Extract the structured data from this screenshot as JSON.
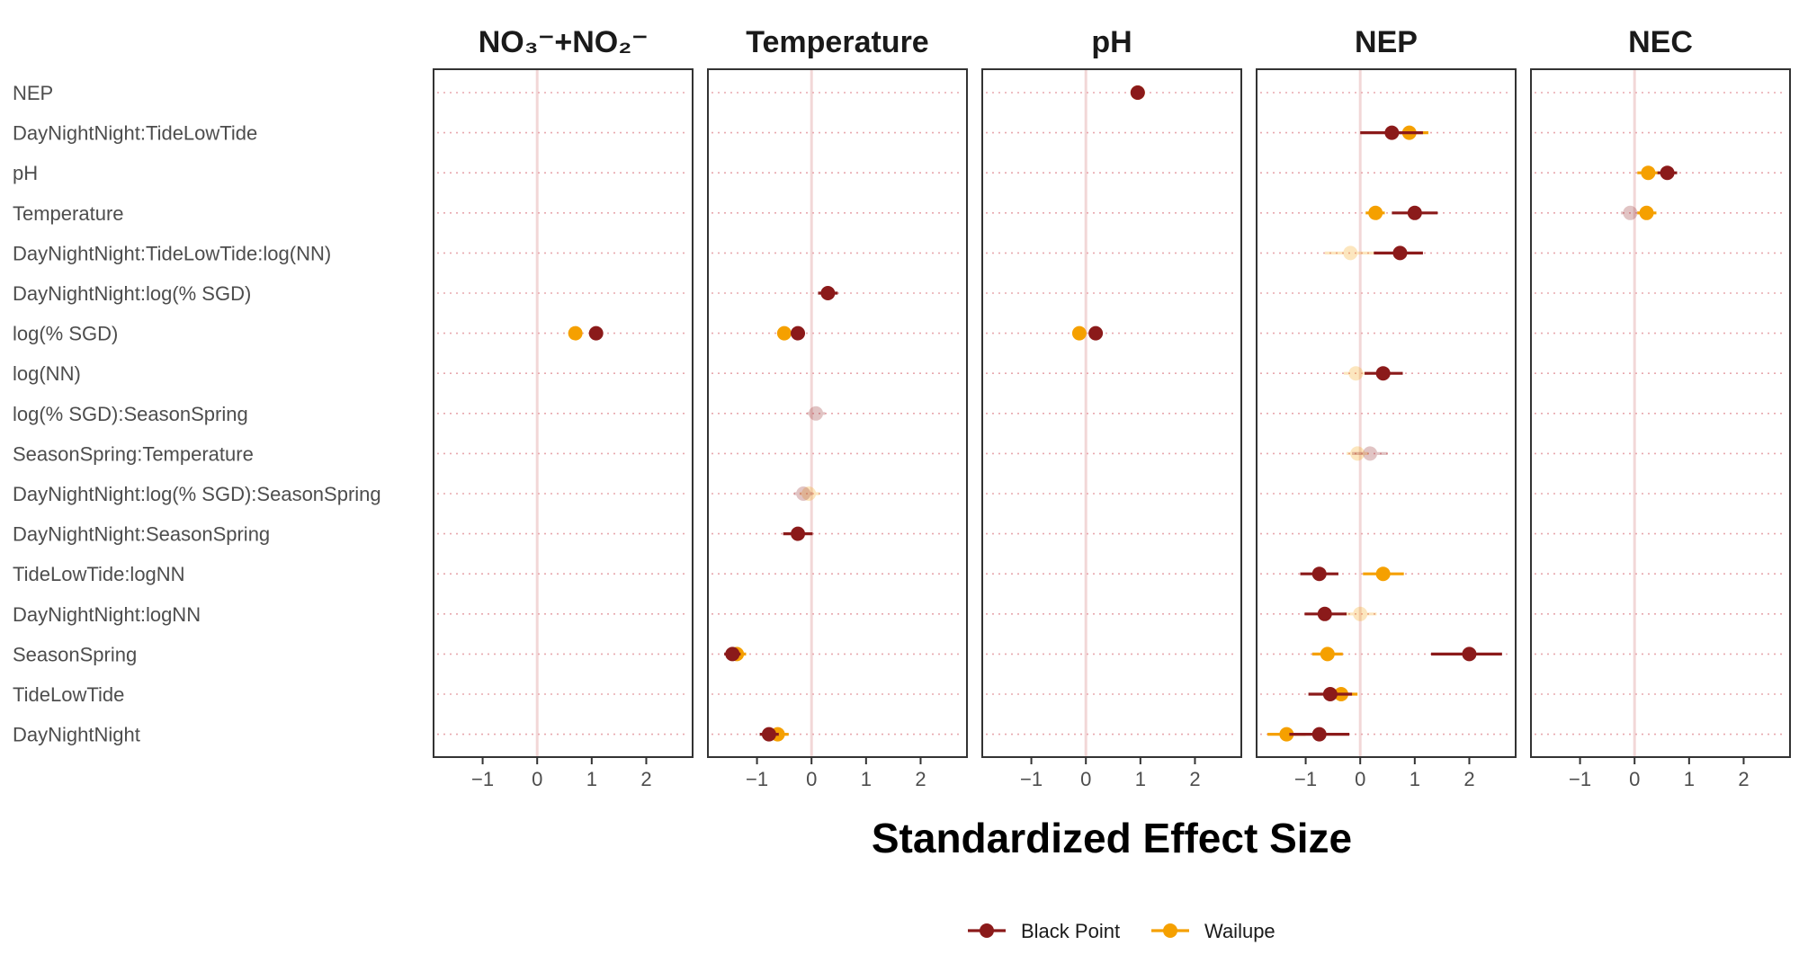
{
  "chart_data": {
    "type": "scatter",
    "subtype": "forest-plot",
    "xlabel": "Standardized Effect Size",
    "ylabel": "",
    "xlim": [
      -1.9,
      2.85
    ],
    "x_ticks": [
      -1,
      0,
      1,
      2
    ],
    "x_tick_labels": [
      "−1",
      "0",
      "1",
      "2"
    ],
    "reference_line": 0,
    "grid": "dotted horizontal lines at each term",
    "legend": {
      "position": "bottom",
      "entries": [
        {
          "name": "Black Point",
          "color": "#8B1A1A"
        },
        {
          "name": "Wailupe",
          "color": "#F5A000"
        }
      ]
    },
    "rows": [
      "NEP",
      "DayNightNight:TideLowTide",
      "pH",
      "Temperature",
      "DayNightNight:TideLowTide:log(NN)",
      "DayNightNight:log(% SGD)",
      "log(% SGD)",
      "log(NN)",
      "log(% SGD):SeasonSpring",
      "SeasonSpring:Temperature",
      "DayNightNight:log(% SGD):SeasonSpring",
      "DayNightNight:SeasonSpring",
      "TideLowTide:logNN",
      "DayNightNight:logNN",
      "SeasonSpring",
      "TideLowTide",
      "DayNightNight"
    ],
    "facets": [
      {
        "title": "NO₃⁻+NO₂⁻",
        "points": [
          {
            "row": "log(% SGD)",
            "series": "Black Point",
            "estimate": 1.08,
            "lo": 1.08,
            "hi": 1.08,
            "faded": false
          },
          {
            "row": "log(% SGD)",
            "series": "Wailupe",
            "estimate": 0.7,
            "lo": 0.7,
            "hi": 0.7,
            "faded": false
          }
        ]
      },
      {
        "title": "Temperature",
        "points": [
          {
            "row": "DayNightNight:log(% SGD)",
            "series": "Black Point",
            "estimate": 0.3,
            "lo": 0.12,
            "hi": 0.48,
            "faded": false
          },
          {
            "row": "log(% SGD)",
            "series": "Wailupe",
            "estimate": -0.5,
            "lo": -0.5,
            "hi": -0.5,
            "faded": false
          },
          {
            "row": "log(% SGD)",
            "series": "Black Point",
            "estimate": -0.25,
            "lo": -0.25,
            "hi": -0.25,
            "faded": false
          },
          {
            "row": "log(% SGD):SeasonSpring",
            "series": "Black Point",
            "estimate": 0.08,
            "lo": -0.08,
            "hi": 0.25,
            "faded": true
          },
          {
            "row": "DayNightNight:log(% SGD):SeasonSpring",
            "series": "Wailupe",
            "estimate": -0.05,
            "lo": -0.22,
            "hi": 0.15,
            "faded": true
          },
          {
            "row": "DayNightNight:log(% SGD):SeasonSpring",
            "series": "Black Point",
            "estimate": -0.15,
            "lo": -0.32,
            "hi": 0.02,
            "faded": true
          },
          {
            "row": "DayNightNight:SeasonSpring",
            "series": "Black Point",
            "estimate": -0.25,
            "lo": -0.52,
            "hi": 0.02,
            "faded": false
          },
          {
            "row": "SeasonSpring",
            "series": "Wailupe",
            "estimate": -1.37,
            "lo": -1.58,
            "hi": -1.2,
            "faded": false
          },
          {
            "row": "SeasonSpring",
            "series": "Black Point",
            "estimate": -1.45,
            "lo": -1.6,
            "hi": -1.3,
            "faded": false
          },
          {
            "row": "DayNightNight",
            "series": "Wailupe",
            "estimate": -0.62,
            "lo": -0.82,
            "hi": -0.42,
            "faded": false
          },
          {
            "row": "DayNightNight",
            "series": "Black Point",
            "estimate": -0.78,
            "lo": -0.95,
            "hi": -0.6,
            "faded": false
          }
        ]
      },
      {
        "title": "pH",
        "points": [
          {
            "row": "NEP",
            "series": "Wailupe",
            "estimate": 0.95,
            "lo": 0.95,
            "hi": 0.95,
            "faded": false
          },
          {
            "row": "NEP",
            "series": "Black Point",
            "estimate": 0.95,
            "lo": 0.95,
            "hi": 0.95,
            "faded": false
          },
          {
            "row": "log(% SGD)",
            "series": "Wailupe",
            "estimate": -0.12,
            "lo": -0.12,
            "hi": -0.12,
            "faded": false
          },
          {
            "row": "log(% SGD)",
            "series": "Black Point",
            "estimate": 0.18,
            "lo": 0.18,
            "hi": 0.18,
            "faded": false
          }
        ]
      },
      {
        "title": "NEP",
        "points": [
          {
            "row": "DayNightNight:TideLowTide",
            "series": "Wailupe",
            "estimate": 0.9,
            "lo": 0.55,
            "hi": 1.25,
            "faded": false
          },
          {
            "row": "DayNightNight:TideLowTide",
            "series": "Black Point",
            "estimate": 0.58,
            "lo": 0.0,
            "hi": 1.15,
            "faded": false
          },
          {
            "row": "Temperature",
            "series": "Wailupe",
            "estimate": 0.28,
            "lo": 0.1,
            "hi": 0.45,
            "faded": false
          },
          {
            "row": "Temperature",
            "series": "Black Point",
            "estimate": 1.0,
            "lo": 0.58,
            "hi": 1.42,
            "faded": false
          },
          {
            "row": "DayNightNight:TideLowTide:log(NN)",
            "series": "Wailupe",
            "estimate": -0.18,
            "lo": -0.65,
            "hi": 0.3,
            "faded": true
          },
          {
            "row": "DayNightNight:TideLowTide:log(NN)",
            "series": "Black Point",
            "estimate": 0.73,
            "lo": 0.25,
            "hi": 1.15,
            "faded": false
          },
          {
            "row": "log(NN)",
            "series": "Wailupe",
            "estimate": -0.08,
            "lo": -0.3,
            "hi": 0.18,
            "faded": true
          },
          {
            "row": "log(NN)",
            "series": "Black Point",
            "estimate": 0.42,
            "lo": 0.08,
            "hi": 0.78,
            "faded": false
          },
          {
            "row": "SeasonSpring:Temperature",
            "series": "Wailupe",
            "estimate": -0.05,
            "lo": -0.25,
            "hi": 0.15,
            "faded": true
          },
          {
            "row": "SeasonSpring:Temperature",
            "series": "Black Point",
            "estimate": 0.18,
            "lo": -0.15,
            "hi": 0.5,
            "faded": true
          },
          {
            "row": "TideLowTide:logNN",
            "series": "Wailupe",
            "estimate": 0.42,
            "lo": 0.05,
            "hi": 0.8,
            "faded": false
          },
          {
            "row": "TideLowTide:logNN",
            "series": "Black Point",
            "estimate": -0.75,
            "lo": -1.1,
            "hi": -0.4,
            "faded": false
          },
          {
            "row": "DayNightNight:logNN",
            "series": "Wailupe",
            "estimate": 0.0,
            "lo": -0.3,
            "hi": 0.3,
            "faded": true
          },
          {
            "row": "DayNightNight:logNN",
            "series": "Black Point",
            "estimate": -0.65,
            "lo": -1.02,
            "hi": -0.25,
            "faded": false
          },
          {
            "row": "SeasonSpring",
            "series": "Wailupe",
            "estimate": -0.6,
            "lo": -0.88,
            "hi": -0.32,
            "faded": false
          },
          {
            "row": "SeasonSpring",
            "series": "Black Point",
            "estimate": 2.0,
            "lo": 1.3,
            "hi": 2.6,
            "faded": false
          },
          {
            "row": "TideLowTide",
            "series": "Wailupe",
            "estimate": -0.35,
            "lo": -0.65,
            "hi": -0.05,
            "faded": false
          },
          {
            "row": "TideLowTide",
            "series": "Black Point",
            "estimate": -0.55,
            "lo": -0.95,
            "hi": -0.15,
            "faded": false
          },
          {
            "row": "DayNightNight",
            "series": "Wailupe",
            "estimate": -1.35,
            "lo": -1.7,
            "hi": -1.0,
            "faded": false
          },
          {
            "row": "DayNightNight",
            "series": "Black Point",
            "estimate": -0.75,
            "lo": -1.3,
            "hi": -0.2,
            "faded": false
          }
        ]
      },
      {
        "title": "NEC",
        "points": [
          {
            "row": "pH",
            "series": "Wailupe",
            "estimate": 0.25,
            "lo": 0.05,
            "hi": 0.45,
            "faded": false
          },
          {
            "row": "pH",
            "series": "Black Point",
            "estimate": 0.6,
            "lo": 0.42,
            "hi": 0.78,
            "faded": false
          },
          {
            "row": "Temperature",
            "series": "Black Point",
            "estimate": -0.08,
            "lo": -0.25,
            "hi": 0.1,
            "faded": true
          },
          {
            "row": "Temperature",
            "series": "Wailupe",
            "estimate": 0.22,
            "lo": 0.05,
            "hi": 0.4,
            "faded": false
          }
        ]
      }
    ]
  }
}
